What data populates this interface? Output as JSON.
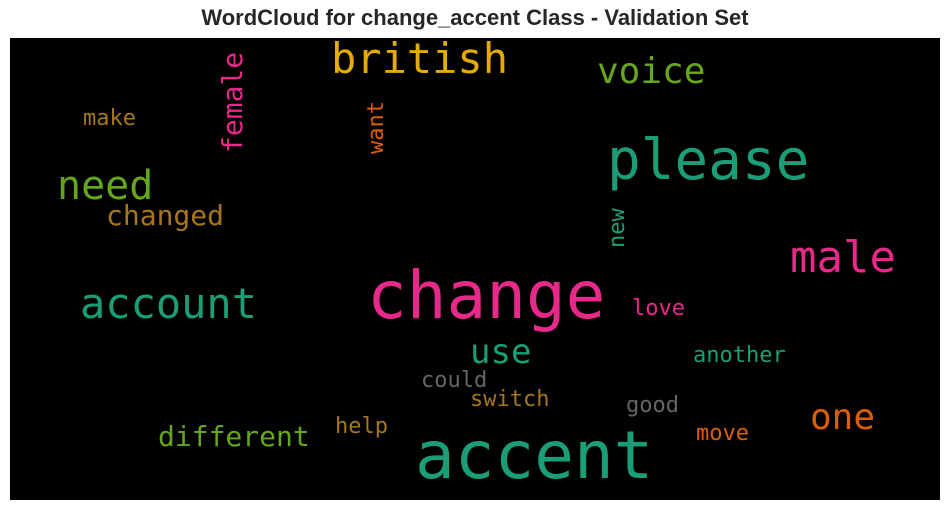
{
  "chart_data": {
    "type": "wordcloud",
    "title": "WordCloud for change_accent Class - Validation Set",
    "background": "#000000",
    "words": [
      {
        "text": "accent",
        "color": "#1b9e77"
      },
      {
        "text": "change",
        "color": "#e7298a"
      },
      {
        "text": "please",
        "color": "#1b9e77"
      },
      {
        "text": "account",
        "color": "#1b9e77"
      },
      {
        "text": "british",
        "color": "#e6ab02"
      },
      {
        "text": "male",
        "color": "#e7298a"
      },
      {
        "text": "need",
        "color": "#66a61e"
      },
      {
        "text": "voice",
        "color": "#66a61e"
      },
      {
        "text": "one",
        "color": "#d95f02"
      },
      {
        "text": "use",
        "color": "#1b9e77"
      },
      {
        "text": "different",
        "color": "#66a61e"
      },
      {
        "text": "changed",
        "color": "#a6761d"
      },
      {
        "text": "female",
        "color": "#e7298a"
      },
      {
        "text": "make",
        "color": "#a6761d"
      },
      {
        "text": "want",
        "color": "#d95f02"
      },
      {
        "text": "new",
        "color": "#1b9e77"
      },
      {
        "text": "love",
        "color": "#e7298a"
      },
      {
        "text": "another",
        "color": "#1b9e77"
      },
      {
        "text": "could",
        "color": "#666666"
      },
      {
        "text": "switch",
        "color": "#a6761d"
      },
      {
        "text": "good",
        "color": "#666666"
      },
      {
        "text": "help",
        "color": "#a6761d"
      },
      {
        "text": "move",
        "color": "#d95f02"
      }
    ]
  }
}
